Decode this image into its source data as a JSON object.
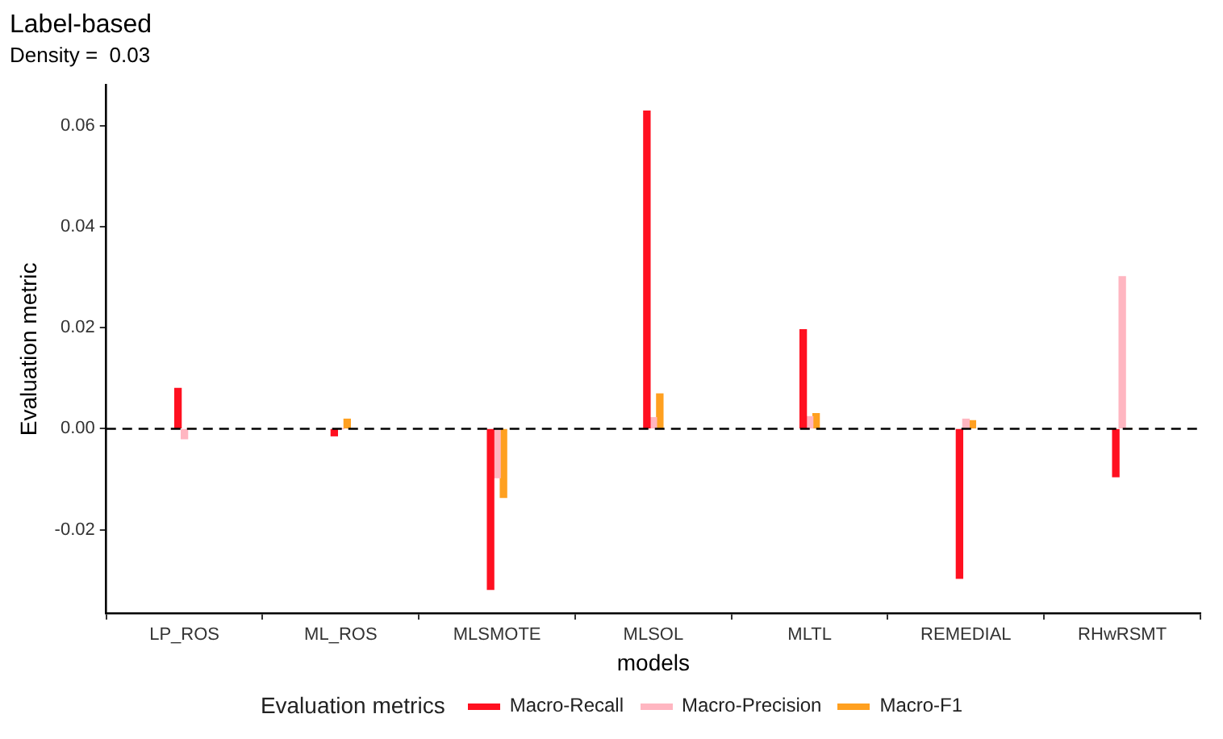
{
  "chart_data": {
    "type": "bar",
    "title": "Label-based",
    "subtitle": "Density =  0.03",
    "xlabel": "models",
    "ylabel": "Evaluation metric",
    "legend_title": "Evaluation metrics",
    "categories": [
      "LP_ROS",
      "ML_ROS",
      "MLSMOTE",
      "MLSOL",
      "MLTL",
      "REMEDIAL",
      "RHwRSMT"
    ],
    "series": [
      {
        "name": "Macro-Recall",
        "color": "#ff1020",
        "values": [
          0.008,
          -0.0014,
          -0.0318,
          0.0629,
          0.0196,
          -0.0296,
          -0.0095
        ]
      },
      {
        "name": "Macro-Precision",
        "color": "#ffb6c1",
        "values": [
          -0.002,
          0,
          -0.0097,
          0.0022,
          0.0024,
          0.0019,
          0.0301
        ]
      },
      {
        "name": "Macro-F1",
        "color": "#ffa020",
        "values": [
          0,
          0.0019,
          -0.0136,
          0.0069,
          0.003,
          0.0016,
          0
        ]
      }
    ],
    "ylim": [
      -0.0365,
      0.068
    ],
    "yticks": [
      -0.02,
      {
        "value": 0,
        "label": "0.00"
      },
      0.02,
      0.04,
      0.06
    ],
    "ref_lines": [
      {
        "axis": "y",
        "value": 0,
        "line_style": "dashed",
        "color": "#000000"
      }
    ],
    "grid": false,
    "legend": "bottom"
  }
}
